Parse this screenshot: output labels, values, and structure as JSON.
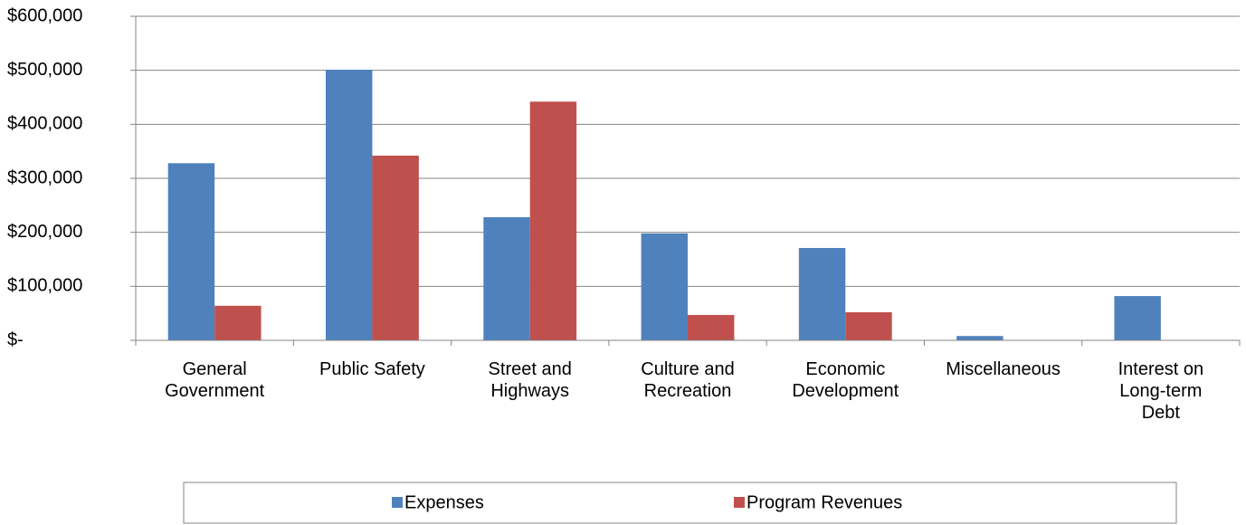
{
  "chart_data": {
    "type": "bar",
    "categories": [
      "General Government",
      "Public Safety",
      "Street and Highways",
      "Culture and Recreation",
      "Economic Development",
      "Miscellaneous",
      "Interest on Long-term Debt"
    ],
    "series": [
      {
        "name": "Expenses",
        "color": "#4f81bd",
        "values": [
          328000,
          501000,
          228000,
          198000,
          171000,
          8000,
          82000
        ]
      },
      {
        "name": "Program Revenues",
        "color": "#c0504d",
        "values": [
          64000,
          342000,
          442000,
          47000,
          52000,
          0,
          0
        ]
      }
    ],
    "ylim": [
      0,
      600000
    ],
    "yticks": [
      {
        "value": 0,
        "label": "$-"
      },
      {
        "value": 100000,
        "label": "$100,000"
      },
      {
        "value": 200000,
        "label": "$200,000"
      },
      {
        "value": 300000,
        "label": "$300,000"
      },
      {
        "value": 400000,
        "label": "$400,000"
      },
      {
        "value": 500000,
        "label": "$500,000"
      },
      {
        "value": 600000,
        "label": "$600,000"
      }
    ],
    "grid": true,
    "legend": "bottom"
  }
}
